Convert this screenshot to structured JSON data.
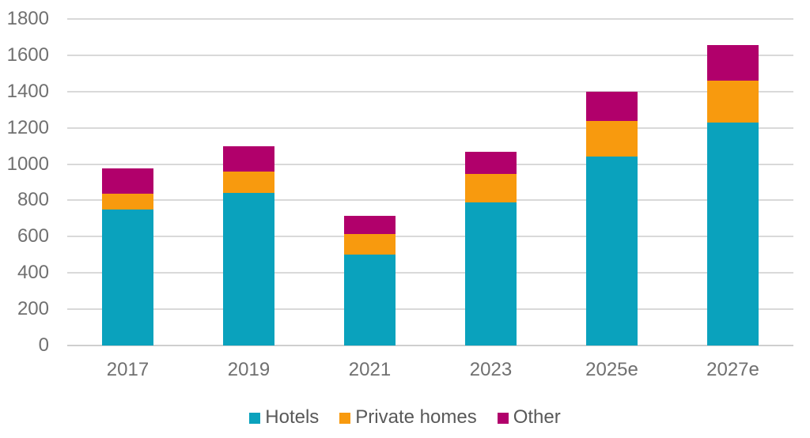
{
  "chart_data": {
    "type": "bar",
    "stacked": true,
    "title": "",
    "xlabel": "",
    "ylabel": "",
    "categories": [
      "2017",
      "2019",
      "2021",
      "2023",
      "2025e",
      "2027e"
    ],
    "series": [
      {
        "name": "Hotels",
        "color": "#0AA2BD",
        "values": [
          750,
          840,
          500,
          790,
          1040,
          1230
        ]
      },
      {
        "name": "Private homes",
        "color": "#F89A0E",
        "values": [
          85,
          120,
          115,
          155,
          200,
          230
        ]
      },
      {
        "name": "Other",
        "color": "#B1006B",
        "values": [
          140,
          140,
          100,
          125,
          160,
          195
        ]
      }
    ],
    "totals": [
      975,
      1100,
      715,
      1070,
      1400,
      1655
    ],
    "ylim": [
      0,
      1800
    ],
    "yticks": [
      0,
      200,
      400,
      600,
      800,
      1000,
      1200,
      1400,
      1600,
      1800
    ],
    "grid": "horizontal",
    "legend_position": "bottom"
  },
  "style": {
    "grid_color": "#d9d9d9",
    "baseline_color": "#cfcfcf",
    "axis_tick_color": "#707070",
    "legend_text_color": "#595959",
    "background": "#ffffff"
  }
}
